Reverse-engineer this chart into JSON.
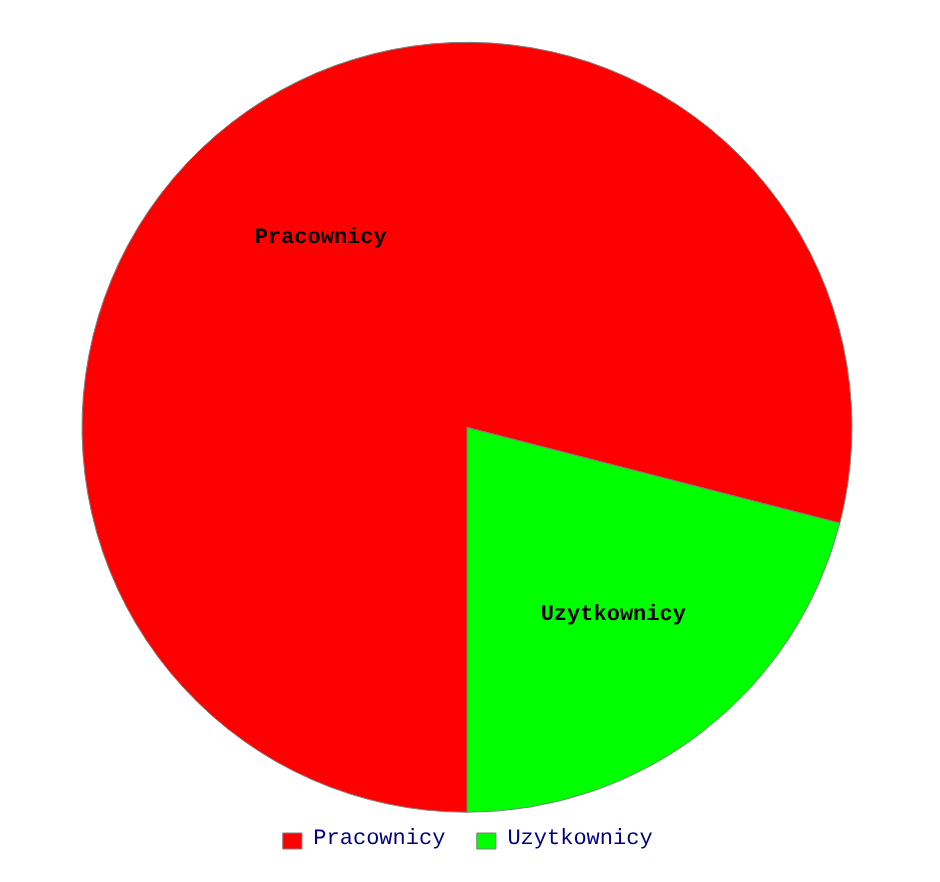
{
  "chart_data": {
    "type": "pie",
    "categories": [
      "Pracownicy",
      "Uzytkownicy"
    ],
    "values": [
      79,
      21
    ],
    "colors": [
      "#ff0000",
      "#00ff00"
    ],
    "legend": "bottom"
  }
}
